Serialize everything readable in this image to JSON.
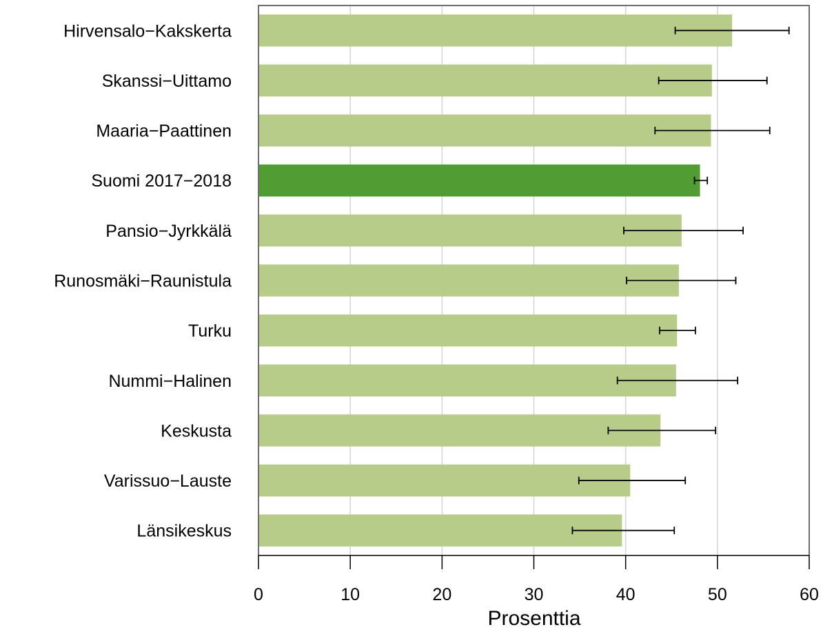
{
  "chart_data": {
    "type": "bar",
    "orientation": "horizontal",
    "categories": [
      "Hirvensalo−Kakskerta",
      "Skanssi−Uittamo",
      "Maaria−Paattinen",
      "Suomi 2017−2018",
      "Pansio−Jyrkkälä",
      "Runosmäki−Raunistula",
      "Turku",
      "Nummi−Halinen",
      "Keskusta",
      "Varissuo−Lauste",
      "Länsikeskus"
    ],
    "values": [
      51.6,
      49.4,
      49.3,
      48.1,
      46.1,
      45.8,
      45.6,
      45.5,
      43.8,
      40.5,
      39.6
    ],
    "error_low": [
      45.4,
      43.6,
      43.2,
      47.5,
      39.8,
      40.1,
      43.7,
      39.1,
      38.1,
      34.9,
      34.2
    ],
    "error_high": [
      57.8,
      55.4,
      55.7,
      48.9,
      52.8,
      52.0,
      47.6,
      52.2,
      49.8,
      46.5,
      45.3
    ],
    "highlight_category": "Suomi 2017−2018",
    "xlabel": "Prosenttia",
    "ylabel": "",
    "title": "",
    "xlim": [
      0,
      60
    ],
    "xticks": [
      0,
      10,
      20,
      30,
      40,
      50,
      60
    ],
    "grid": "vertical",
    "legend": "none",
    "colors": {
      "bar": "#b7cc89",
      "highlight_bar": "#529d33",
      "error_bar": "#000000",
      "grid": "#d3d3d3",
      "frame": "#6e6e6e"
    }
  }
}
